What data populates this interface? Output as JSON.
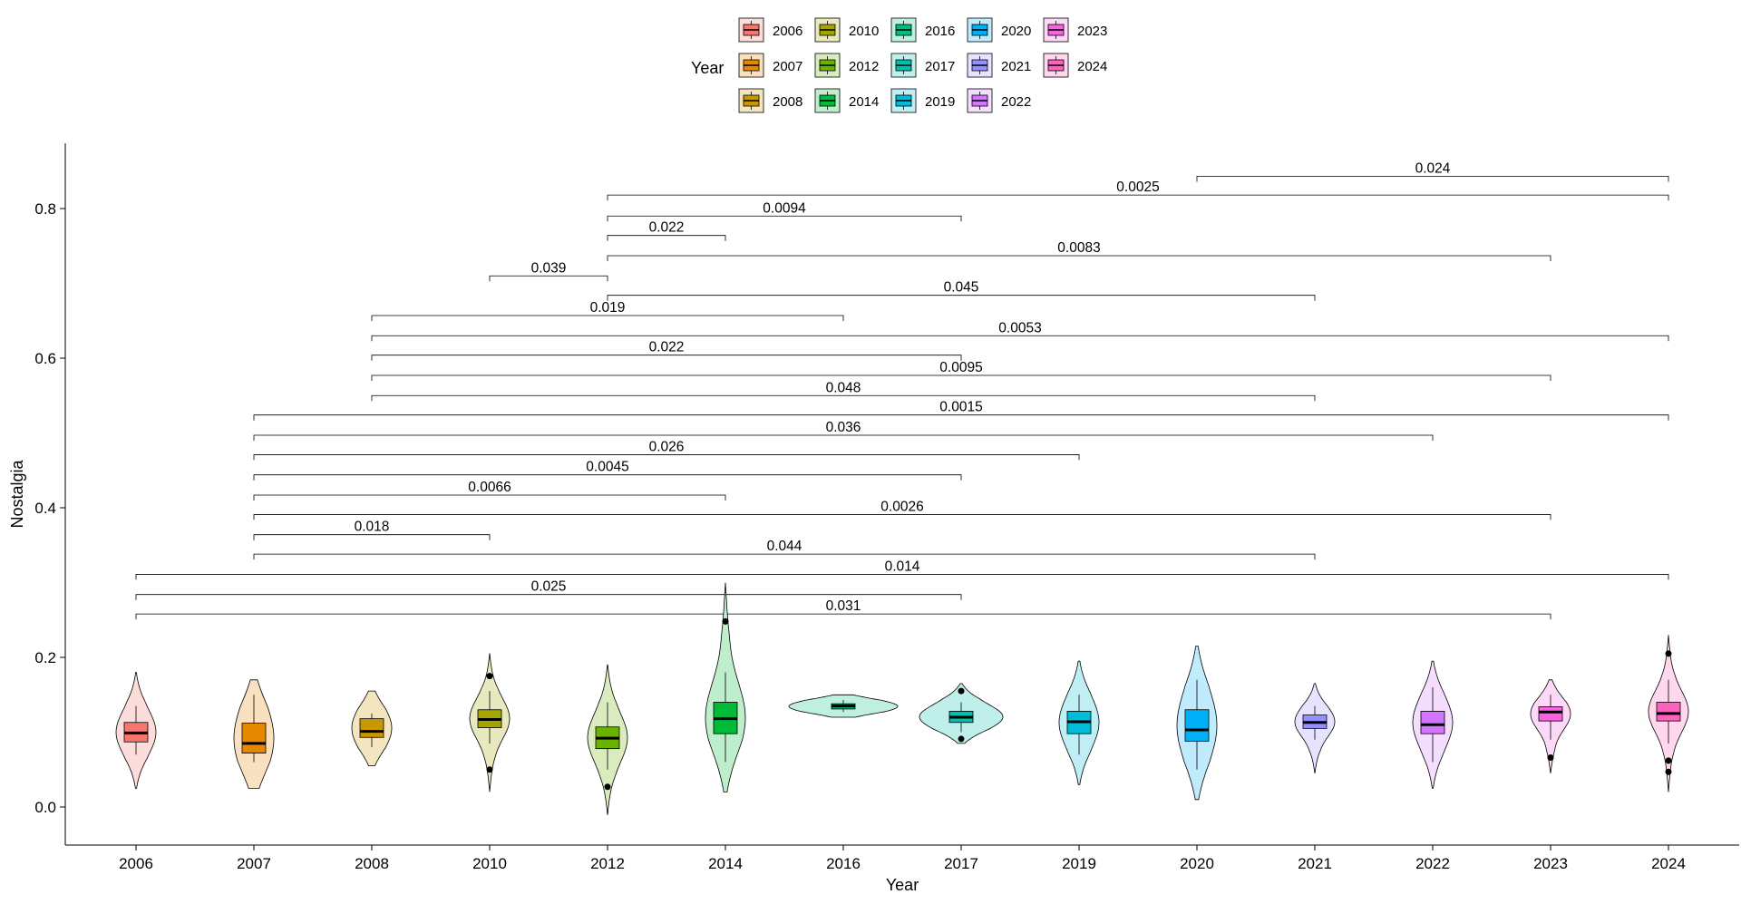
{
  "chart_data": {
    "type": "violin",
    "xlabel": "Year",
    "ylabel": "Nostalgia",
    "ylim": [
      -0.05,
      0.88
    ],
    "yticks": [
      0.0,
      0.2,
      0.4,
      0.6,
      0.8
    ],
    "ytick_labels": [
      "0.0",
      "0.2",
      "0.4",
      "0.6",
      "0.8"
    ],
    "legend": {
      "title": "Year",
      "placement": "top",
      "items": [
        "2006",
        "2007",
        "2008",
        "2010",
        "2012",
        "2014",
        "2016",
        "2017",
        "2019",
        "2020",
        "2021",
        "2022",
        "2023",
        "2024"
      ]
    },
    "colors": {
      "2006": "#F8766D",
      "2007": "#E58700",
      "2008": "#C99800",
      "2010": "#A3A500",
      "2012": "#6BB100",
      "2014": "#00BA38",
      "2016": "#00BF7D",
      "2017": "#00C0AF",
      "2019": "#00BCD8",
      "2020": "#00B0F6",
      "2021": "#9590FF",
      "2022": "#D376FF",
      "2023": "#F763E0",
      "2024": "#FF62BC"
    },
    "categories": [
      "2006",
      "2007",
      "2008",
      "2010",
      "2012",
      "2014",
      "2016",
      "2017",
      "2019",
      "2020",
      "2021",
      "2022",
      "2023",
      "2024"
    ],
    "groups": [
      {
        "year": "2006",
        "min": 0.025,
        "max": 0.18,
        "q1": 0.087,
        "median": 0.099,
        "q3": 0.113,
        "wlo": 0.07,
        "whi": 0.135,
        "outliers": []
      },
      {
        "year": "2007",
        "min": 0.025,
        "max": 0.17,
        "q1": 0.072,
        "median": 0.085,
        "q3": 0.112,
        "wlo": 0.06,
        "whi": 0.15,
        "outliers": []
      },
      {
        "year": "2008",
        "min": 0.055,
        "max": 0.155,
        "q1": 0.093,
        "median": 0.101,
        "q3": 0.118,
        "wlo": 0.08,
        "whi": 0.125,
        "outliers": []
      },
      {
        "year": "2010",
        "min": 0.02,
        "max": 0.205,
        "q1": 0.106,
        "median": 0.117,
        "q3": 0.13,
        "wlo": 0.085,
        "whi": 0.155,
        "outliers": [
          0.175,
          0.05
        ]
      },
      {
        "year": "2012",
        "min": -0.01,
        "max": 0.19,
        "q1": 0.078,
        "median": 0.092,
        "q3": 0.107,
        "wlo": 0.05,
        "whi": 0.14,
        "outliers": [
          0.027
        ]
      },
      {
        "year": "2014",
        "min": 0.02,
        "max": 0.3,
        "q1": 0.098,
        "median": 0.118,
        "q3": 0.14,
        "wlo": 0.06,
        "whi": 0.18,
        "outliers": [
          0.248
        ]
      },
      {
        "year": "2016",
        "min": 0.12,
        "max": 0.15,
        "q1": 0.131,
        "median": 0.135,
        "q3": 0.138,
        "wlo": 0.127,
        "whi": 0.143,
        "outliers": []
      },
      {
        "year": "2017",
        "min": 0.085,
        "max": 0.165,
        "q1": 0.113,
        "median": 0.12,
        "q3": 0.128,
        "wlo": 0.1,
        "whi": 0.14,
        "outliers": [
          0.155,
          0.091
        ]
      },
      {
        "year": "2019",
        "min": 0.03,
        "max": 0.195,
        "q1": 0.098,
        "median": 0.114,
        "q3": 0.128,
        "wlo": 0.07,
        "whi": 0.15,
        "outliers": []
      },
      {
        "year": "2020",
        "min": 0.01,
        "max": 0.215,
        "q1": 0.088,
        "median": 0.103,
        "q3": 0.13,
        "wlo": 0.05,
        "whi": 0.17,
        "outliers": []
      },
      {
        "year": "2021",
        "min": 0.045,
        "max": 0.165,
        "q1": 0.105,
        "median": 0.113,
        "q3": 0.123,
        "wlo": 0.09,
        "whi": 0.135,
        "outliers": []
      },
      {
        "year": "2022",
        "min": 0.025,
        "max": 0.195,
        "q1": 0.098,
        "median": 0.11,
        "q3": 0.128,
        "wlo": 0.06,
        "whi": 0.16,
        "outliers": []
      },
      {
        "year": "2023",
        "min": 0.045,
        "max": 0.17,
        "q1": 0.115,
        "median": 0.127,
        "q3": 0.134,
        "wlo": 0.09,
        "whi": 0.15,
        "outliers": [
          0.066
        ]
      },
      {
        "year": "2024",
        "min": 0.02,
        "max": 0.23,
        "q1": 0.115,
        "median": 0.125,
        "q3": 0.14,
        "wlo": 0.085,
        "whi": 0.17,
        "outliers": [
          0.205,
          0.062,
          0.047
        ]
      }
    ],
    "comparisons": [
      {
        "from": "2020",
        "to": "2024",
        "y": 0.843,
        "p": "0.024"
      },
      {
        "from": "2012",
        "to": "2024",
        "y": 0.818,
        "p": "0.0025"
      },
      {
        "from": "2012",
        "to": "2017",
        "y": 0.79,
        "p": "0.0094"
      },
      {
        "from": "2012",
        "to": "2014",
        "y": 0.764,
        "p": "0.022"
      },
      {
        "from": "2012",
        "to": "2023",
        "y": 0.737,
        "p": "0.0083"
      },
      {
        "from": "2010",
        "to": "2012",
        "y": 0.71,
        "p": "0.039"
      },
      {
        "from": "2012",
        "to": "2021",
        "y": 0.684,
        "p": "0.045"
      },
      {
        "from": "2008",
        "to": "2016",
        "y": 0.657,
        "p": "0.019"
      },
      {
        "from": "2008",
        "to": "2024",
        "y": 0.63,
        "p": "0.0053"
      },
      {
        "from": "2008",
        "to": "2017",
        "y": 0.604,
        "p": "0.022"
      },
      {
        "from": "2008",
        "to": "2023",
        "y": 0.577,
        "p": "0.0095"
      },
      {
        "from": "2008",
        "to": "2021",
        "y": 0.55,
        "p": "0.048"
      },
      {
        "from": "2007",
        "to": "2024",
        "y": 0.524,
        "p": "0.0015"
      },
      {
        "from": "2007",
        "to": "2022",
        "y": 0.497,
        "p": "0.036"
      },
      {
        "from": "2007",
        "to": "2019",
        "y": 0.471,
        "p": "0.026"
      },
      {
        "from": "2007",
        "to": "2017",
        "y": 0.444,
        "p": "0.0045"
      },
      {
        "from": "2007",
        "to": "2014",
        "y": 0.417,
        "p": "0.0066"
      },
      {
        "from": "2007",
        "to": "2023",
        "y": 0.391,
        "p": "0.0026"
      },
      {
        "from": "2007",
        "to": "2010",
        "y": 0.364,
        "p": "0.018"
      },
      {
        "from": "2007",
        "to": "2021",
        "y": 0.338,
        "p": "0.044"
      },
      {
        "from": "2006",
        "to": "2024",
        "y": 0.311,
        "p": "0.014"
      },
      {
        "from": "2006",
        "to": "2017",
        "y": 0.284,
        "p": "0.025"
      },
      {
        "from": "2006",
        "to": "2023",
        "y": 0.258,
        "p": "0.031"
      }
    ]
  }
}
